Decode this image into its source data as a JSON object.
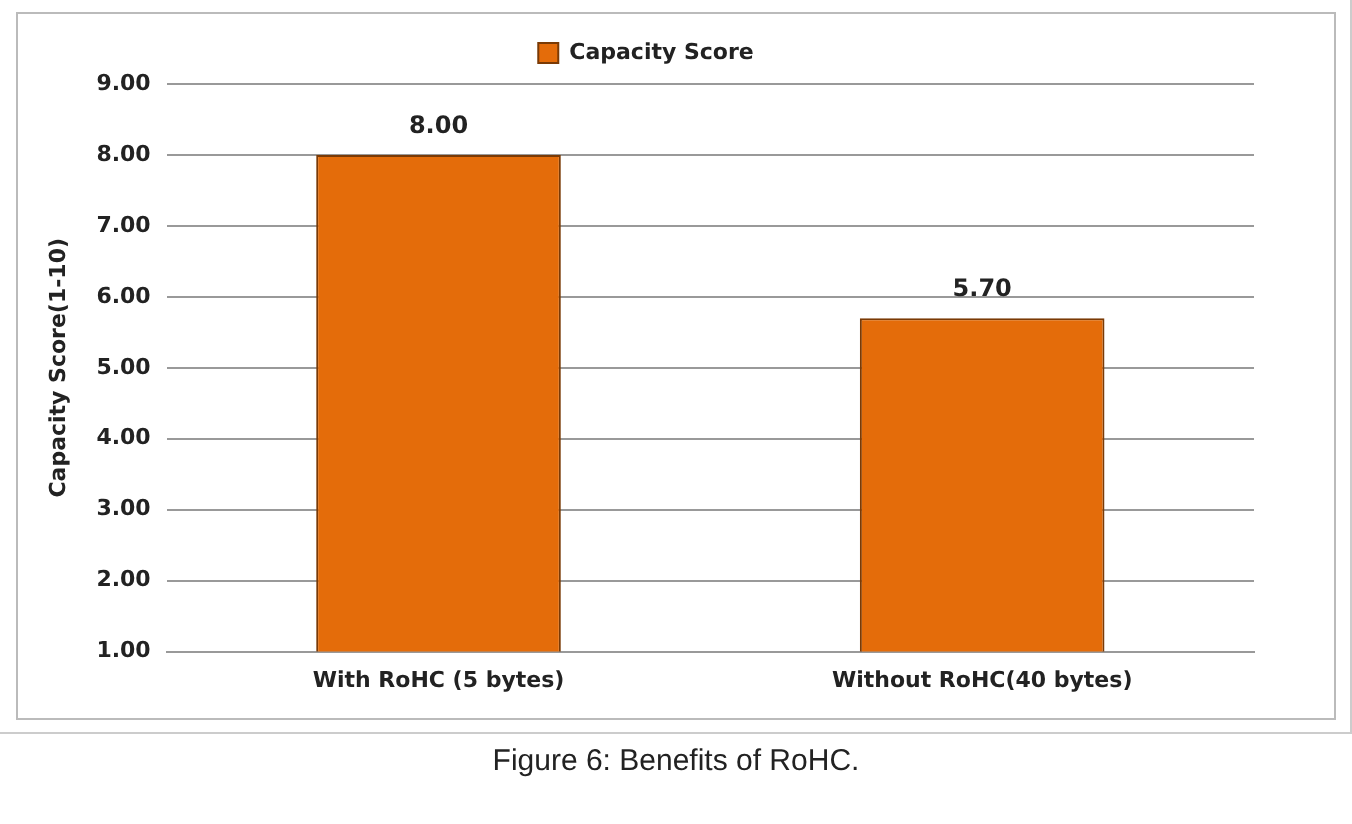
{
  "chart_data": {
    "type": "bar",
    "ylabel": "Capacity Score(1-10)",
    "categories": [
      "With RoHC (5 bytes)",
      "Without RoHC(40 bytes)"
    ],
    "series": [
      {
        "name": "Capacity Score",
        "color": "#e46c0a",
        "values": [
          8.0,
          5.7
        ],
        "value_labels": [
          "8.00",
          "5.70"
        ]
      }
    ],
    "ylim": [
      1,
      9
    ],
    "yticks": [
      {
        "value": 1,
        "label": "1.00"
      },
      {
        "value": 2,
        "label": "2.00"
      },
      {
        "value": 3,
        "label": "3.00"
      },
      {
        "value": 4,
        "label": "4.00"
      },
      {
        "value": 5,
        "label": "5.00"
      },
      {
        "value": 6,
        "label": "6.00"
      },
      {
        "value": 7,
        "label": "7.00"
      },
      {
        "value": 8,
        "label": "8.00"
      },
      {
        "value": 9,
        "label": "9.00"
      }
    ],
    "grid": "y",
    "legend": "top",
    "annotations": [
      "Figure 6: Benefits of RoHC."
    ]
  }
}
